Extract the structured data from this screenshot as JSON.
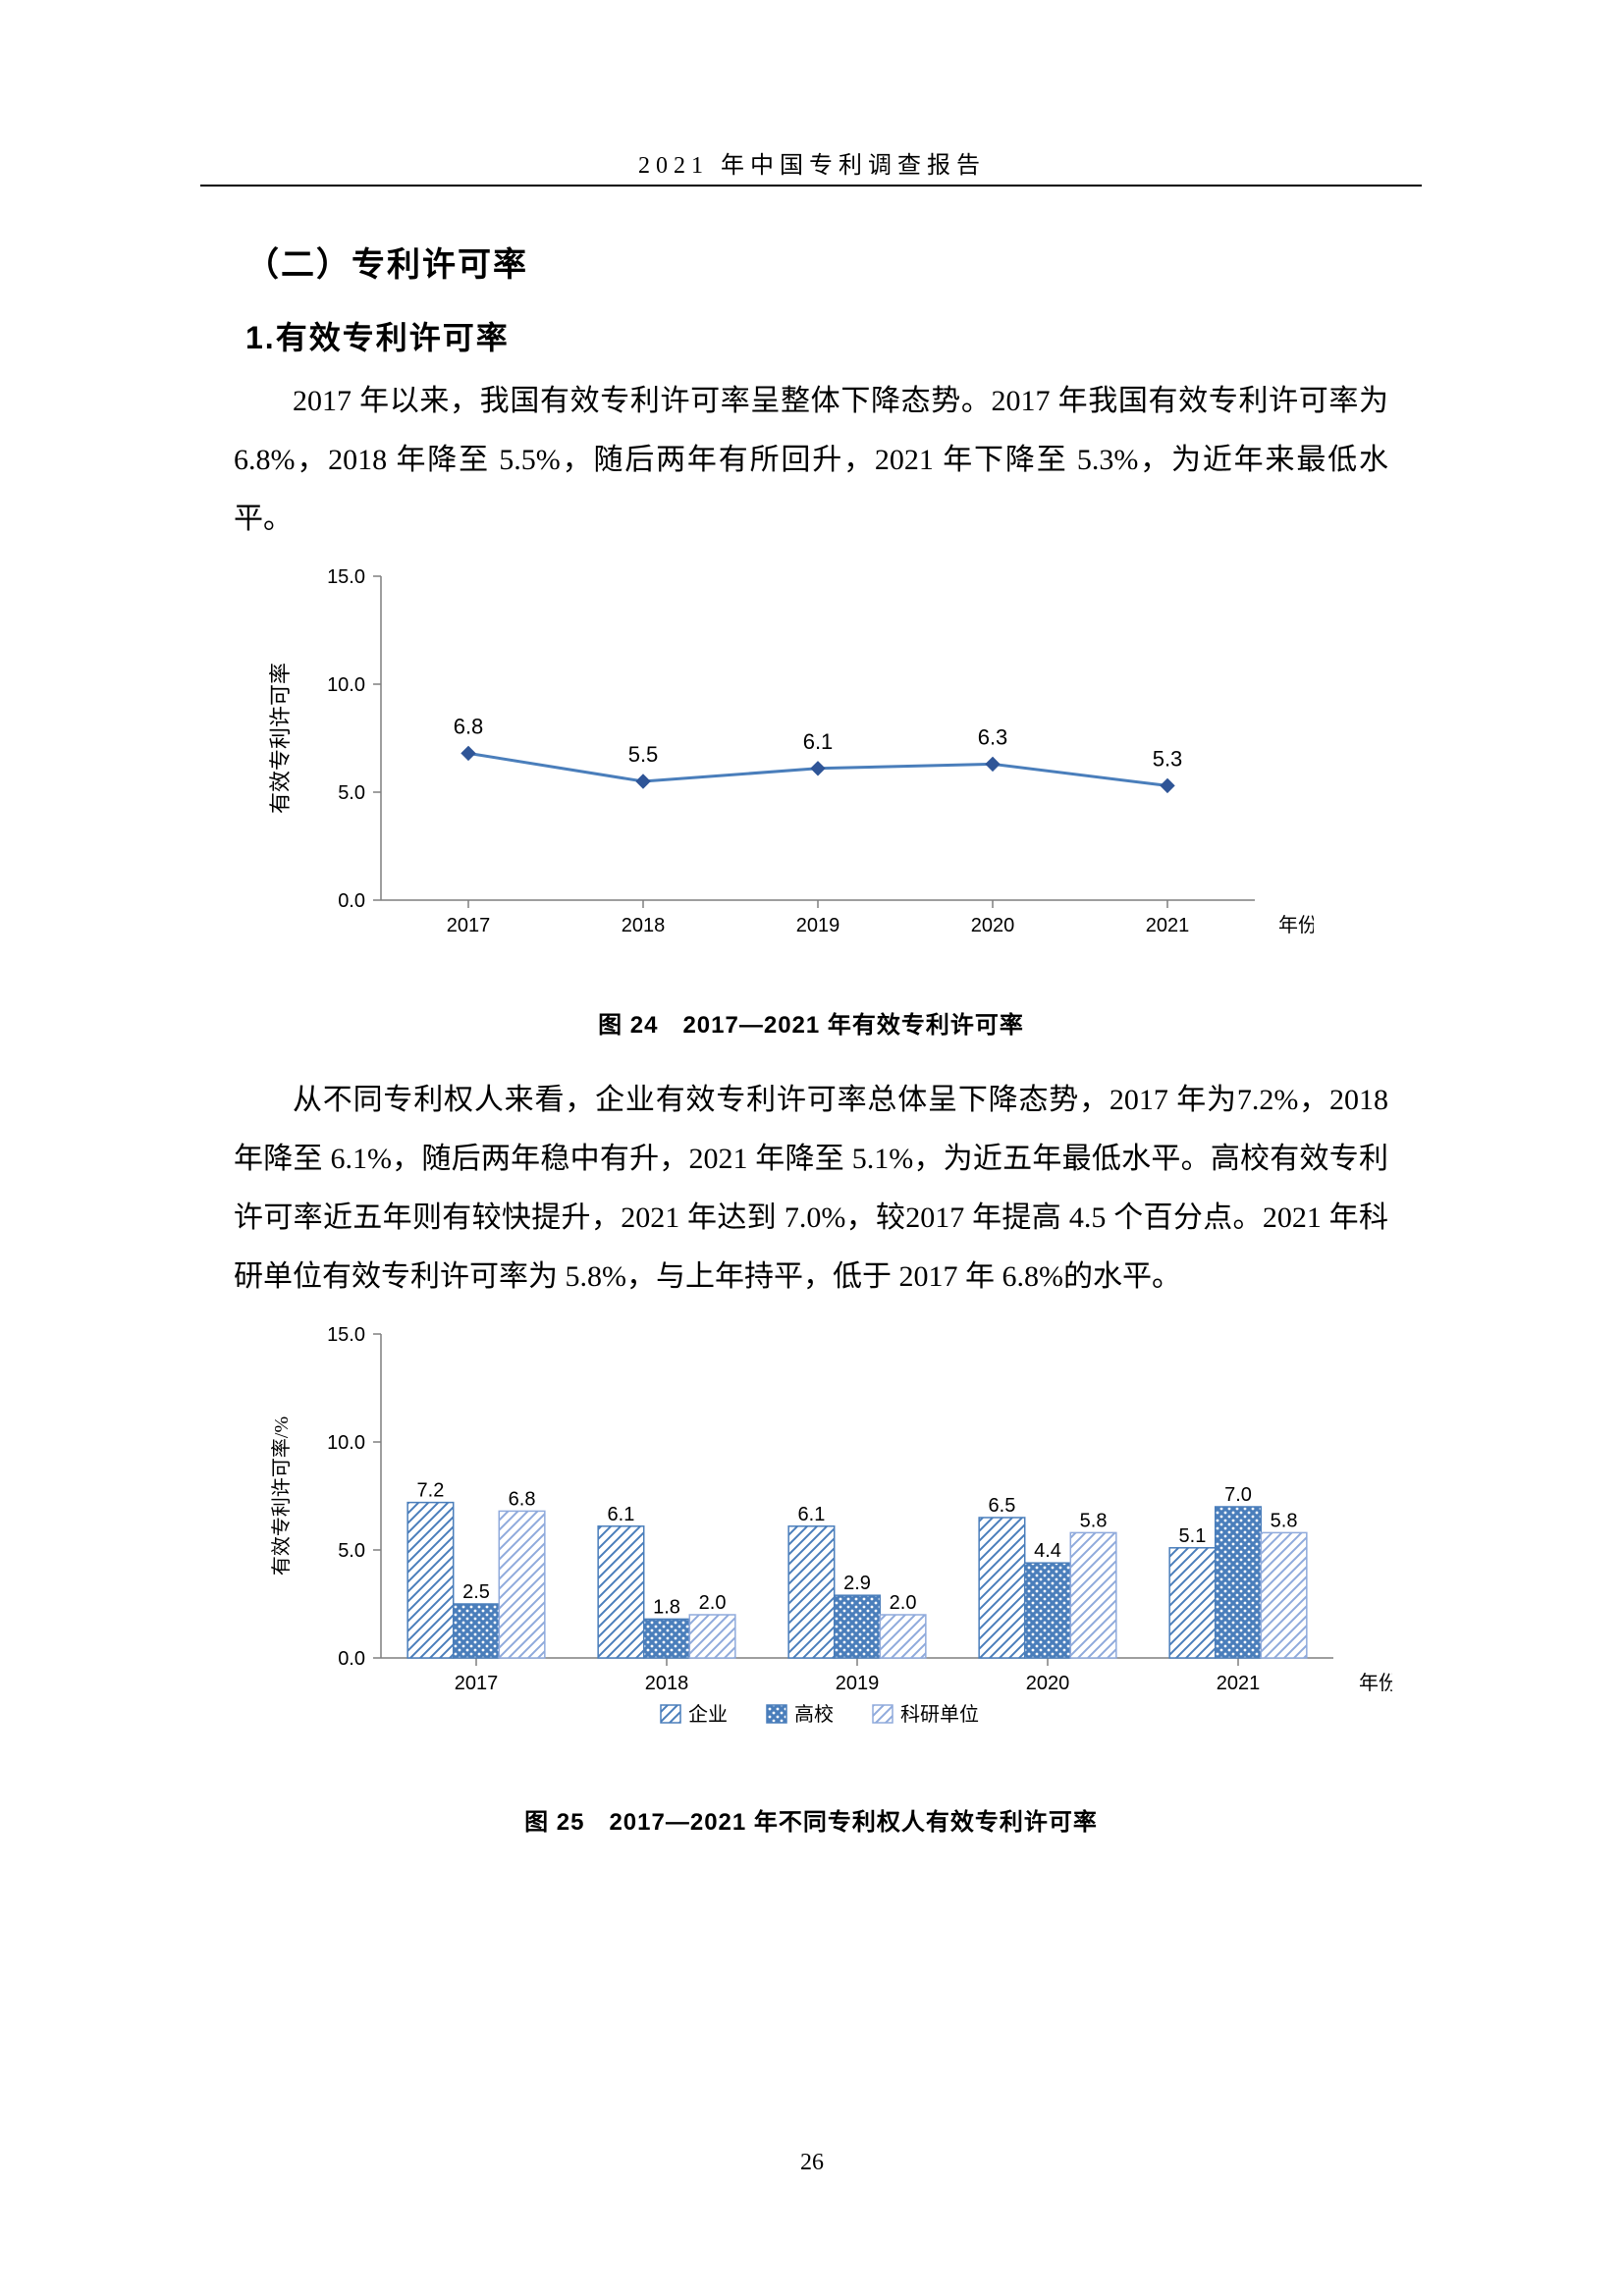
{
  "header": {
    "title": "2021 年中国专利调查报告"
  },
  "section": {
    "heading_level2": "（二）专利许可率",
    "heading_level3": "1.有效专利许可率",
    "para1": "2017 年以来，我国有效专利许可率呈整体下降态势。2017 年我国有效专利许可率为 6.8%，2018 年降至 5.5%，随后两年有所回升，2021 年下降至 5.3%，为近年来最低水平。",
    "para2": "从不同专利权人来看，企业有效专利许可率总体呈下降态势，2017 年为7.2%，2018 年降至 6.1%，随后两年稳中有升，2021 年降至 5.1%，为近五年最低水平。高校有效专利许可率近五年则有较快提升，2021 年达到 7.0%，较2017 年提高 4.5 个百分点。2021 年科研单位有效专利许可率为 5.8%，与上年持平，低于 2017 年 6.8%的水平。"
  },
  "chart24": {
    "type": "line",
    "caption": "图 24　2017—2021 年有效专利许可率",
    "ylabel": "有效专利许可率",
    "xlabel": "年份",
    "ylim": [
      0.0,
      15.0
    ],
    "ytick_step": 5.0,
    "ytick_labels": [
      "0.0",
      "5.0",
      "10.0",
      "15.0"
    ],
    "categories": [
      "2017",
      "2018",
      "2019",
      "2020",
      "2021"
    ],
    "values": [
      6.8,
      5.5,
      6.1,
      6.3,
      5.3
    ],
    "line_color": "#4a7ebb",
    "marker_color": "#2f5597",
    "marker": "diamond",
    "line_width": 3,
    "background_color": "#ffffff",
    "tick_fontsize": 20,
    "value_label_fontsize": 22
  },
  "chart25": {
    "type": "grouped-bar",
    "caption": "图 25　2017—2021 年不同专利权人有效专利许可率",
    "ylabel": "有效专利许可率/%",
    "xlabel": "年份",
    "ylim": [
      0.0,
      15.0
    ],
    "ytick_step": 5.0,
    "ytick_labels": [
      "0.0",
      "5.0",
      "10.0",
      "15.0"
    ],
    "categories": [
      "2017",
      "2018",
      "2019",
      "2020",
      "2021"
    ],
    "series": [
      {
        "name": "企业",
        "values": [
          7.2,
          6.1,
          6.1,
          6.5,
          5.1
        ],
        "pattern": "diag",
        "fill": "#ffffff",
        "stroke": "#4a7ebb"
      },
      {
        "name": "高校",
        "values": [
          2.5,
          1.8,
          2.9,
          4.4,
          7.0
        ],
        "pattern": "dots",
        "fill": "#4a7ebb",
        "stroke": "#4a7ebb"
      },
      {
        "name": "科研单位",
        "values": [
          6.8,
          2.0,
          2.0,
          5.8,
          5.8
        ],
        "pattern": "diag2",
        "fill": "#ffffff",
        "stroke": "#8faadc"
      }
    ],
    "tick_fontsize": 20,
    "value_label_fontsize": 20,
    "bar_width": 0.24,
    "legend_position": "bottom"
  },
  "page_number": "26"
}
